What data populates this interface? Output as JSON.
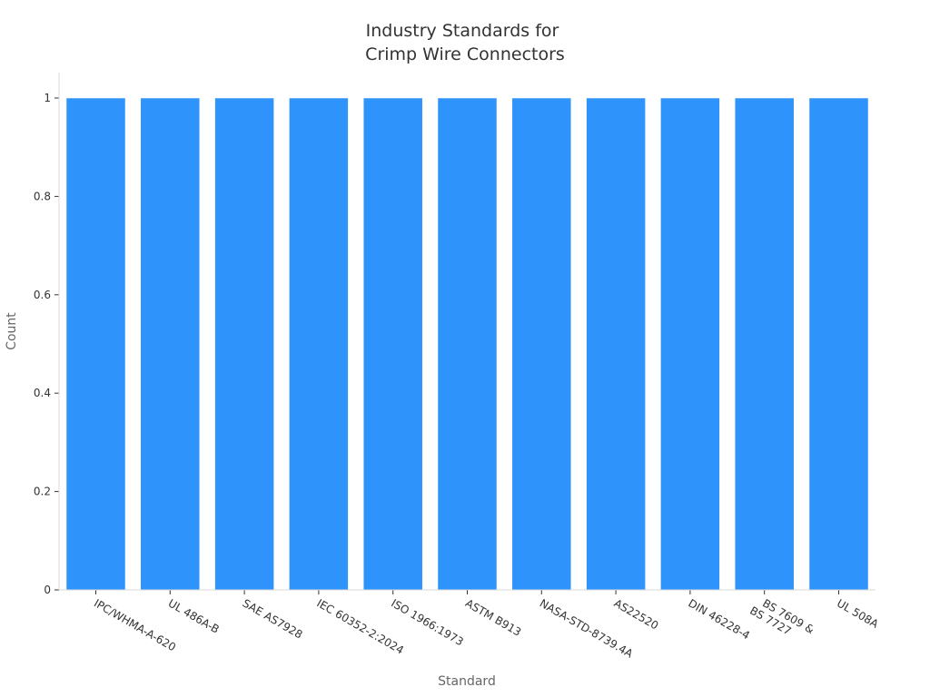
{
  "chart_data": {
    "type": "bar",
    "title": [
      "Industry Standards for",
      "Crimp Wire Connectors"
    ],
    "xlabel": "Standard",
    "ylabel": "Count",
    "categories": [
      [
        "IPC/WHMA-A-620"
      ],
      [
        "UL 486A-B"
      ],
      [
        "SAE AS7928"
      ],
      [
        "IEC 60352-2:2024"
      ],
      [
        "ISO 1966:1973"
      ],
      [
        "ASTM B913"
      ],
      [
        "NASA-STD-8739.4A"
      ],
      [
        "AS22520"
      ],
      [
        "DIN 46228-4"
      ],
      [
        "BS 7609 &",
        "BS 7727"
      ],
      [
        "UL 508A"
      ]
    ],
    "values": [
      1,
      1,
      1,
      1,
      1,
      1,
      1,
      1,
      1,
      1,
      1
    ],
    "ylim": [
      0,
      1
    ],
    "yticks": [
      "0",
      "0.2",
      "0.4",
      "0.6",
      "0.8",
      "1"
    ],
    "bar_color": "#2e93fa",
    "grid": false,
    "legend": "none"
  }
}
